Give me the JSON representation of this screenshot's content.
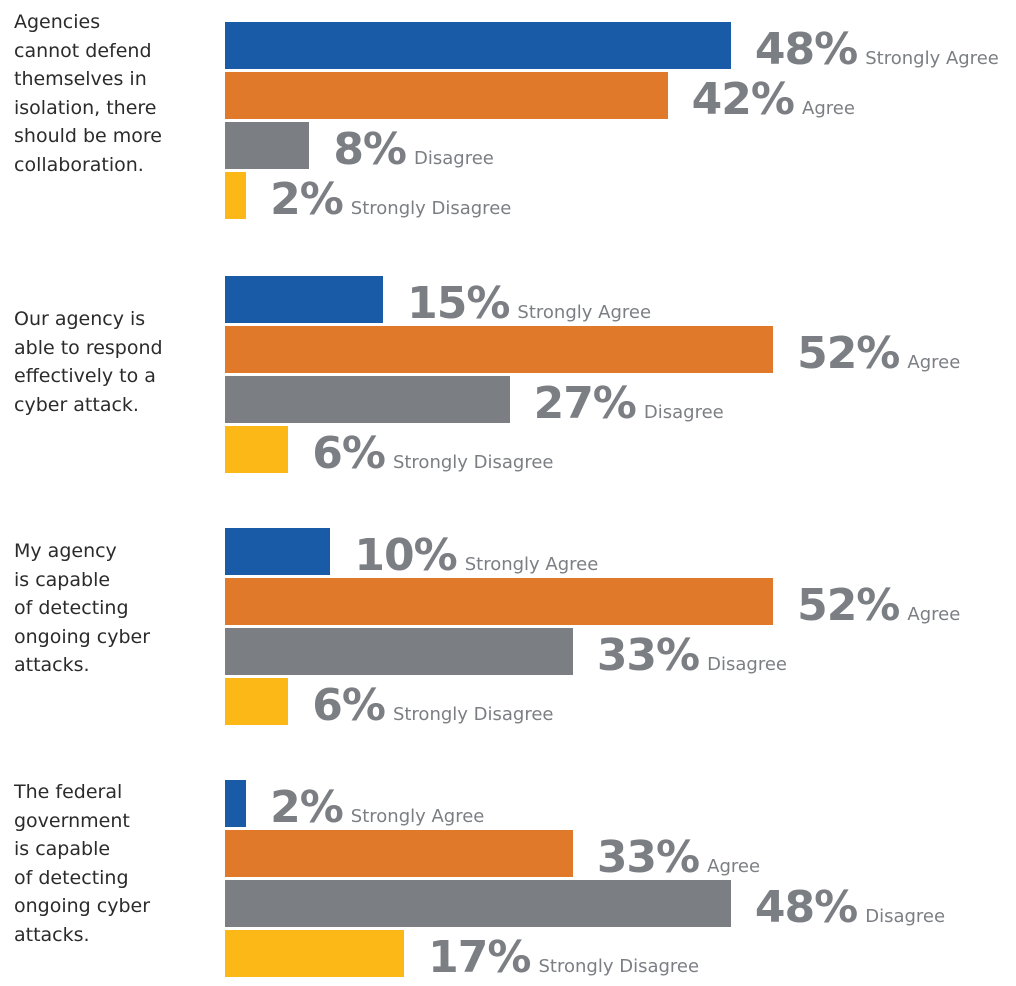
{
  "chart_data": {
    "type": "bar",
    "orientation": "horizontal",
    "categories": [
      "Agencies\ncannot defend\nthemselves in\nisolation, there\nshould be more\ncollaboration.",
      "Our agency is\nable to respond\neffectively to a\ncyber attack.",
      "My agency\nis capable\nof detecting\nongoing cyber\nattacks.",
      "The federal\ngovernment\nis capable\nof detecting\nongoing cyber\nattacks."
    ],
    "series": [
      {
        "name": "Strongly Agree",
        "color": "#1a5ba8",
        "values": [
          48,
          15,
          10,
          2
        ],
        "value_labels": [
          "48%",
          "15%",
          "10%",
          "2%"
        ]
      },
      {
        "name": "Agree",
        "color": "#e07a2a",
        "values": [
          42,
          52,
          52,
          33
        ],
        "value_labels": [
          "42%",
          "52%",
          "52%",
          "33%"
        ]
      },
      {
        "name": "Disagree",
        "color": "#7b7e83",
        "values": [
          8,
          27,
          33,
          48
        ],
        "value_labels": [
          "8%",
          "27%",
          "33%",
          "48%"
        ]
      },
      {
        "name": "Strongly Disagree",
        "color": "#fbb817",
        "values": [
          2,
          6,
          6,
          17
        ],
        "value_labels": [
          "2%",
          "6%",
          "6%",
          "17%"
        ]
      }
    ]
  }
}
